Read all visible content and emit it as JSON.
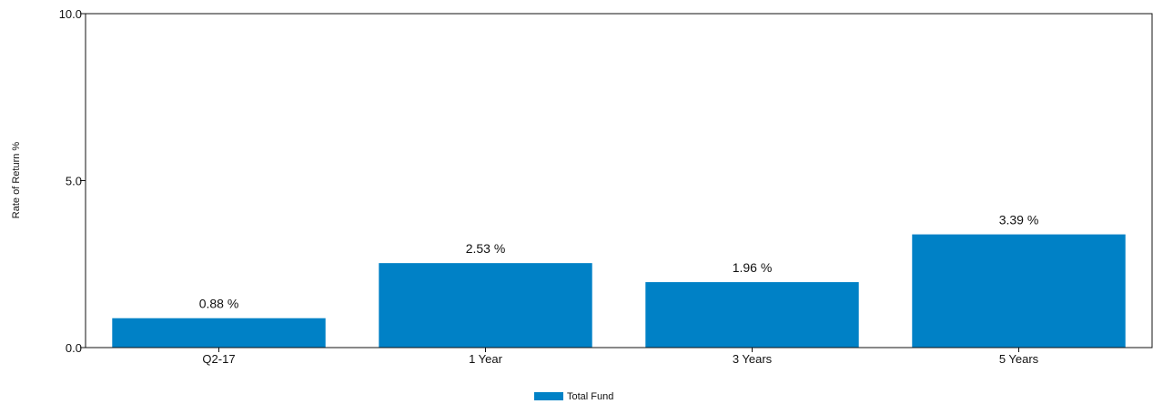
{
  "chart_data": {
    "type": "bar",
    "categories": [
      "Q2-17",
      "1 Year",
      "3 Years",
      "5 Years"
    ],
    "series": [
      {
        "name": "Total Fund",
        "values": [
          0.88,
          2.53,
          1.96,
          3.39
        ]
      }
    ],
    "value_labels": [
      "0.88 %",
      "2.53 %",
      "1.96 %",
      "3.39 %"
    ],
    "ylabel": "Rate of Return %",
    "xlabel": "",
    "ylim": [
      0,
      10
    ],
    "y_ticks": [
      0,
      5,
      10
    ],
    "y_tick_labels": [
      "0.0",
      "5.0",
      "10.0"
    ],
    "grid": false,
    "legend_position": "bottom-center",
    "bar_color": "#0081C6"
  }
}
